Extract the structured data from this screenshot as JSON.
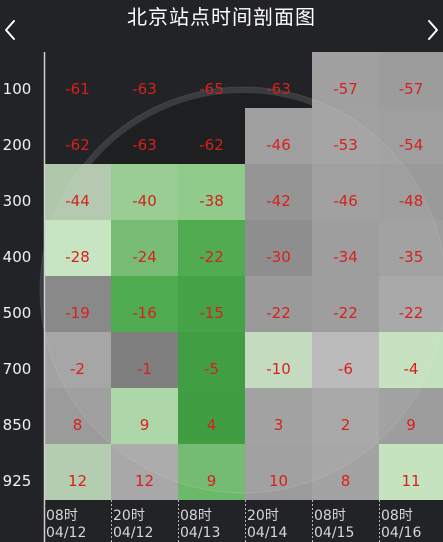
{
  "nav": {
    "prev_icon": "chevron-left-icon",
    "next_icon": "chevron-right-icon"
  },
  "colors": {
    "background": "#222327",
    "globe": "#111416",
    "globe_rim": "#3a3e42",
    "value_text": "#d6211c",
    "axis_text": "#f2f2f2",
    "tick_text": "#d6d6d6",
    "axis_line": "#cfcfcf",
    "tick_line": "#b5b5b5"
  },
  "chart_data": {
    "type": "heatmap",
    "title": "北京站点时间剖面图",
    "y_categories": [
      "100",
      "200",
      "300",
      "400",
      "500",
      "700",
      "850",
      "925"
    ],
    "x_categories": [
      {
        "time": "08时",
        "date": "04/12"
      },
      {
        "time": "20时",
        "date": "04/12"
      },
      {
        "time": "08时",
        "date": "04/13"
      },
      {
        "time": "20时",
        "date": "04/14"
      },
      {
        "time": "08时",
        "date": "04/15"
      },
      {
        "time": "08时",
        "date": "04/16"
      }
    ],
    "values": [
      [
        -61,
        -63,
        -65,
        -63,
        -57,
        -57
      ],
      [
        -62,
        -63,
        -62,
        -46,
        -53,
        -54
      ],
      [
        -44,
        -40,
        -38,
        -42,
        -46,
        -48
      ],
      [
        -28,
        -24,
        -22,
        -30,
        -34,
        -35
      ],
      [
        -19,
        -16,
        -15,
        -22,
        -22,
        -22
      ],
      [
        -2,
        -1,
        -5,
        -10,
        -6,
        -4
      ],
      [
        8,
        9,
        4,
        3,
        2,
        9
      ],
      [
        12,
        12,
        9,
        10,
        8,
        11
      ]
    ],
    "cell_colors": [
      [
        null,
        null,
        null,
        null,
        "#a0a0a0",
        "#9c9c9c"
      ],
      [
        null,
        null,
        null,
        "#9a9a9a",
        "#a1a1a1",
        "#9f9f9f"
      ],
      [
        "#b0c7ab",
        "#95cb8f",
        "#8bc986",
        "#909090",
        "#9c9c9c",
        "#9a9a9a"
      ],
      [
        "#c6e4c0",
        "#70b96e",
        "#48a848",
        "#888888",
        "#999999",
        "#9e9e9e"
      ],
      [
        "#838383",
        "#46a746",
        "#3d9d3d",
        "#959595",
        "#999999",
        "#a5a5a5"
      ],
      [
        "#a2a2a2",
        "#797979",
        "#389938",
        "#c1dabd",
        "#b8b8b8",
        "#c3e1be"
      ],
      [
        "#9b9b9b",
        "#a9d5a5",
        "#379837",
        "#9f9f9f",
        "#a5a5a5",
        "#9d9d9d"
      ],
      [
        "#b4cdb0",
        "#a8a8a8",
        "#6db96c",
        "#9c9c9c",
        "#a3a3a3",
        "#c4e3be"
      ]
    ],
    "grid": false
  }
}
